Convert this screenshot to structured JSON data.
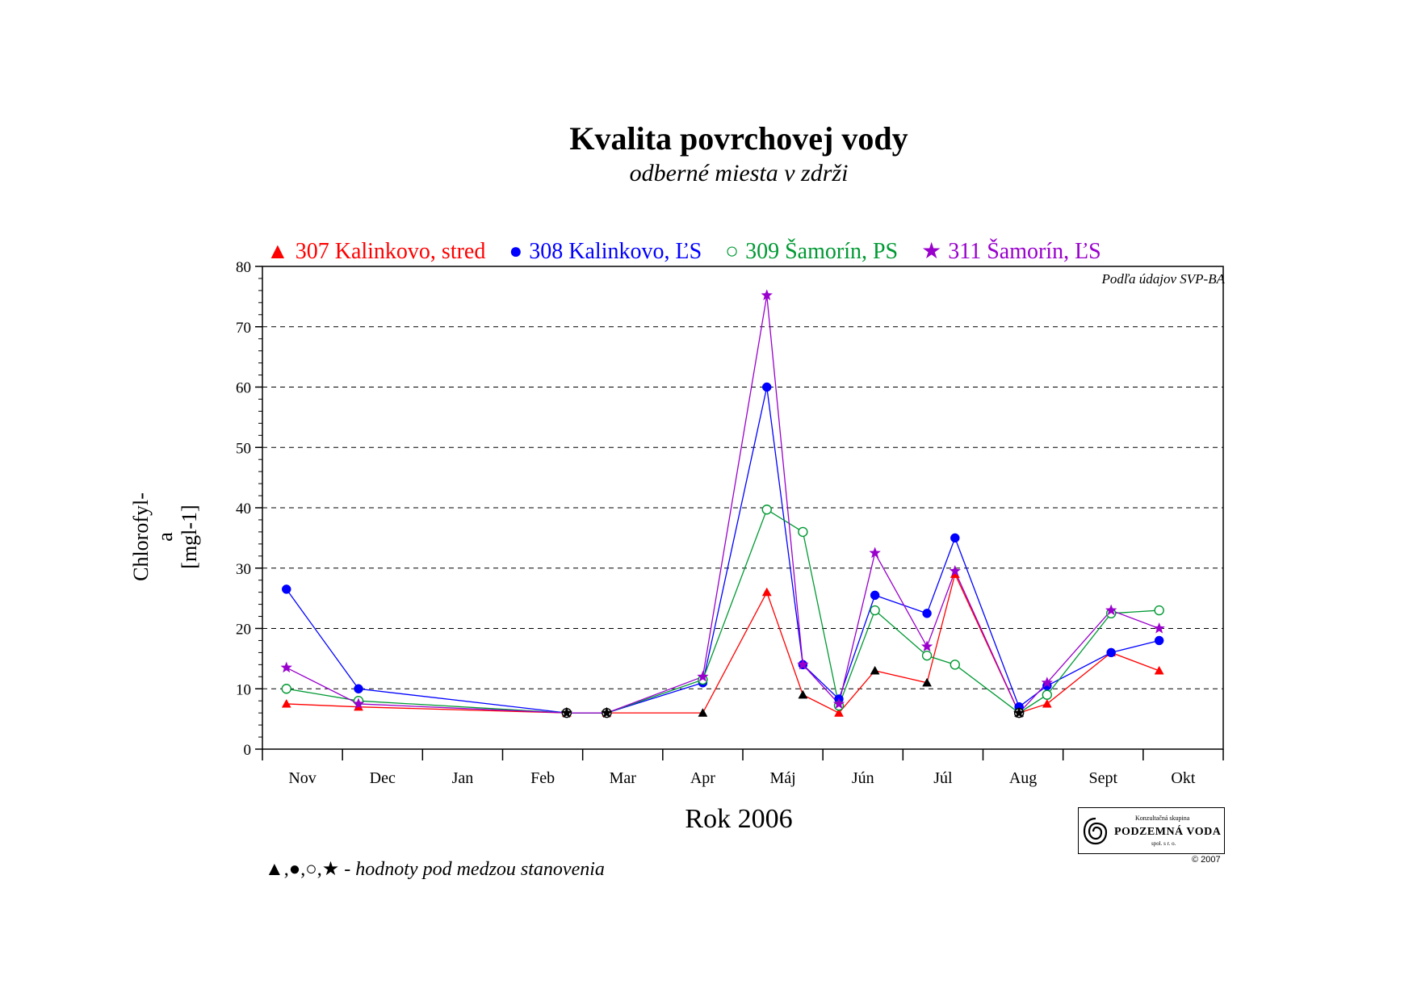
{
  "chart_data": {
    "type": "line",
    "title": "Kvalita povrchovej vody",
    "subtitle": "odberné miesta v zdrži",
    "xlabel": "Rok 2006",
    "ylabel_line1": "Chlorofyl-a",
    "ylabel_line2": "[mgl-1]",
    "ylim": [
      0,
      80
    ],
    "yticks": [
      0,
      10,
      20,
      30,
      40,
      50,
      60,
      70,
      80
    ],
    "months": [
      "Nov",
      "Dec",
      "Jan",
      "Feb",
      "Mar",
      "Apr",
      "Máj",
      "Jún",
      "Júl",
      "Aug",
      "Sept",
      "Okt"
    ],
    "grid": "horizontal dashed",
    "legend_position": "top",
    "note": "Podľa údajov SVP-BA",
    "series": [
      {
        "name": "307 Kalinkovo, stred",
        "color": "#ff0000",
        "marker": "triangle",
        "symbol": "▲",
        "points": [
          [
            0.3,
            7.5
          ],
          [
            1.2,
            7
          ],
          [
            3.8,
            6
          ],
          [
            4.3,
            6
          ],
          [
            5.5,
            6
          ],
          [
            6.3,
            26
          ],
          [
            6.75,
            9
          ],
          [
            7.2,
            6
          ],
          [
            7.65,
            13
          ],
          [
            8.3,
            11
          ],
          [
            8.65,
            29
          ],
          [
            9.45,
            6
          ],
          [
            9.8,
            7.5
          ],
          [
            10.6,
            16
          ],
          [
            11.2,
            13
          ]
        ],
        "below_limit": [
          4,
          6,
          8,
          9,
          11
        ]
      },
      {
        "name": "308 Kalinkovo, ĽS",
        "color": "#0000ff",
        "marker": "circle",
        "symbol": "●",
        "points": [
          [
            0.3,
            26.5
          ],
          [
            1.2,
            10
          ],
          [
            3.8,
            6
          ],
          [
            4.3,
            6
          ],
          [
            5.5,
            11
          ],
          [
            6.3,
            60
          ],
          [
            6.75,
            14
          ],
          [
            7.2,
            8.3
          ],
          [
            7.65,
            25.5
          ],
          [
            8.3,
            22.5
          ],
          [
            8.65,
            35
          ],
          [
            9.45,
            7
          ],
          [
            9.8,
            10.5
          ],
          [
            10.6,
            16
          ],
          [
            11.2,
            18
          ]
        ],
        "below_limit": [
          2,
          3
        ]
      },
      {
        "name": "309 Šamorín, PS",
        "color": "#009933",
        "marker": "open-circle",
        "symbol": "○",
        "points": [
          [
            0.3,
            10
          ],
          [
            1.2,
            8
          ],
          [
            3.8,
            6
          ],
          [
            4.3,
            6
          ],
          [
            5.5,
            11.5
          ],
          [
            6.3,
            39.7
          ],
          [
            6.75,
            36
          ],
          [
            7.2,
            7.2
          ],
          [
            7.65,
            23
          ],
          [
            8.3,
            15.5
          ],
          [
            8.65,
            14
          ],
          [
            9.45,
            6
          ],
          [
            9.8,
            9
          ],
          [
            10.6,
            22.5
          ],
          [
            11.2,
            23
          ]
        ],
        "below_limit": [
          2,
          3,
          11
        ]
      },
      {
        "name": "311 Šamorín, ĽS",
        "color": "#9900cc",
        "marker": "star",
        "symbol": "★",
        "points": [
          [
            0.3,
            13.5
          ],
          [
            1.2,
            7.5
          ],
          [
            3.8,
            6
          ],
          [
            4.3,
            6
          ],
          [
            5.5,
            12
          ],
          [
            6.3,
            75.2
          ],
          [
            6.75,
            14
          ],
          [
            7.2,
            7.5
          ],
          [
            7.65,
            32.5
          ],
          [
            8.3,
            17
          ],
          [
            8.65,
            29.5
          ],
          [
            9.45,
            6
          ],
          [
            9.8,
            11
          ],
          [
            10.6,
            23
          ],
          [
            11.2,
            20
          ]
        ],
        "below_limit": [
          2,
          3,
          11
        ]
      }
    ]
  },
  "footnote": {
    "symbols": "▲,●,○,★",
    "text": " - hodnoty pod medzou stanovenia"
  },
  "logo": {
    "top": "Konzultačná skupina",
    "main": "PODZEMNÁ VODA",
    "bottom": "spol. s r. o.",
    "copyright": "© 2007"
  }
}
